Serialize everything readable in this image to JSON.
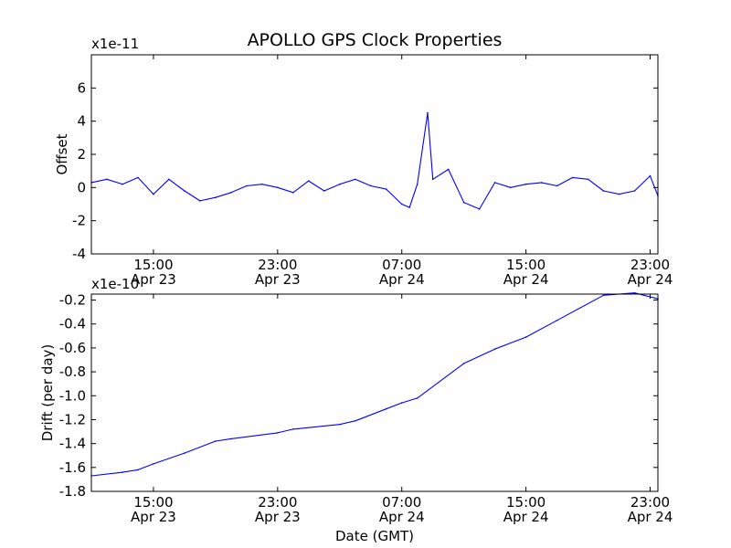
{
  "figure": {
    "title": "APOLLO GPS Clock Properties",
    "xlabel": "Date (GMT)"
  },
  "chart_data": [
    {
      "type": "line",
      "title": "APOLLO GPS Clock Properties",
      "ylabel": "Offset",
      "y_multiplier": "x1e-11",
      "xlabel": "",
      "x_range": [
        "Apr 23 11:00",
        "Apr 24 23:30"
      ],
      "ylim": [
        -4,
        8
      ],
      "yticks": [
        "-4",
        "-2",
        "0",
        "2",
        "4",
        "6"
      ],
      "xticks": [
        {
          "time": "15:00",
          "date": "Apr 23"
        },
        {
          "time": "23:00",
          "date": "Apr 23"
        },
        {
          "time": "07:00",
          "date": "Apr 24"
        },
        {
          "time": "15:00",
          "date": "Apr 24"
        },
        {
          "time": "23:00",
          "date": "Apr 24"
        }
      ],
      "grid": false,
      "color": "#0000ff",
      "series": [
        {
          "x": [
            "Apr 23 11:00",
            "Apr 23 12:00",
            "Apr 23 13:00",
            "Apr 23 14:00",
            "Apr 23 15:00",
            "Apr 23 16:00",
            "Apr 23 17:00",
            "Apr 23 18:00",
            "Apr 23 19:00",
            "Apr 23 20:00",
            "Apr 23 21:00",
            "Apr 23 22:00",
            "Apr 23 23:00",
            "Apr 24 00:00",
            "Apr 24 01:00",
            "Apr 24 02:00",
            "Apr 24 03:00",
            "Apr 24 04:00",
            "Apr 24 05:00",
            "Apr 24 06:00",
            "Apr 24 07:00",
            "Apr 24 07:30",
            "Apr 24 08:00",
            "Apr 24 08:40",
            "Apr 24 09:00",
            "Apr 24 10:00",
            "Apr 24 11:00",
            "Apr 24 12:00",
            "Apr 24 13:00",
            "Apr 24 14:00",
            "Apr 24 15:00",
            "Apr 24 16:00",
            "Apr 24 17:00",
            "Apr 24 18:00",
            "Apr 24 19:00",
            "Apr 24 20:00",
            "Apr 24 21:00",
            "Apr 24 22:00",
            "Apr 24 23:00",
            "Apr 24 23:30"
          ],
          "values": [
            0.3,
            0.5,
            0.2,
            0.6,
            -0.4,
            0.5,
            -0.2,
            -0.8,
            -0.6,
            -0.3,
            0.1,
            0.2,
            0.0,
            -0.3,
            0.4,
            -0.2,
            0.2,
            0.5,
            0.1,
            -0.1,
            -1.0,
            -1.2,
            0.2,
            4.5,
            0.5,
            1.1,
            -0.9,
            -1.3,
            0.3,
            0.0,
            0.2,
            0.3,
            0.1,
            0.6,
            0.5,
            -0.2,
            -0.4,
            -0.2,
            0.7,
            -0.5
          ]
        }
      ]
    },
    {
      "type": "line",
      "ylabel": "Drift (per day)",
      "y_multiplier": "x1e-10",
      "xlabel": "Date (GMT)",
      "x_range": [
        "Apr 23 11:00",
        "Apr 24 23:30"
      ],
      "ylim": [
        -1.8,
        -0.15
      ],
      "yticks": [
        "-1.8",
        "-1.6",
        "-1.4",
        "-1.2",
        "-1.0",
        "-0.8",
        "-0.6",
        "-0.4",
        "-0.2"
      ],
      "xticks": [
        {
          "time": "15:00",
          "date": "Apr 23"
        },
        {
          "time": "23:00",
          "date": "Apr 23"
        },
        {
          "time": "07:00",
          "date": "Apr 24"
        },
        {
          "time": "15:00",
          "date": "Apr 24"
        },
        {
          "time": "23:00",
          "date": "Apr 24"
        }
      ],
      "grid": false,
      "color": "#0000ff",
      "series": [
        {
          "x": [
            "Apr 23 11:00",
            "Apr 23 13:00",
            "Apr 23 14:00",
            "Apr 23 15:00",
            "Apr 23 17:00",
            "Apr 23 19:00",
            "Apr 23 20:00",
            "Apr 23 23:00",
            "Apr 24 00:00",
            "Apr 24 03:00",
            "Apr 24 04:00",
            "Apr 24 06:00",
            "Apr 24 07:00",
            "Apr 24 08:00",
            "Apr 24 11:00",
            "Apr 24 13:00",
            "Apr 24 15:00",
            "Apr 24 17:00",
            "Apr 24 20:00",
            "Apr 24 22:00",
            "Apr 24 23:30"
          ],
          "values": [
            -1.67,
            -1.64,
            -1.62,
            -1.57,
            -1.48,
            -1.38,
            -1.36,
            -1.31,
            -1.28,
            -1.24,
            -1.21,
            -1.11,
            -1.06,
            -1.02,
            -0.73,
            -0.61,
            -0.51,
            -0.37,
            -0.16,
            -0.14,
            -0.19
          ]
        }
      ]
    }
  ]
}
